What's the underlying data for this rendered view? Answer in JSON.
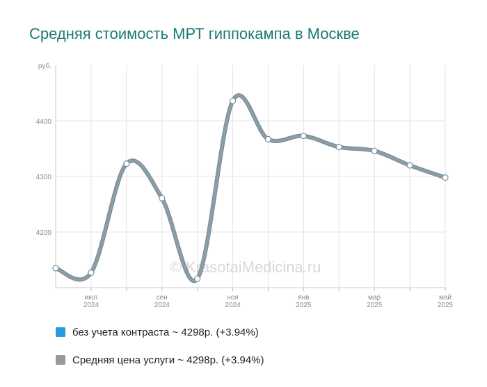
{
  "chart_data": {
    "type": "line",
    "title": "Средняя стоимость МРТ гиппокампа в Москве",
    "ylabel": "руб.",
    "ylim": [
      4100,
      4500
    ],
    "yticks": [
      4200,
      4300,
      4400
    ],
    "xticks": [
      {
        "month": "июл",
        "year": "2024"
      },
      {
        "month": "сен",
        "year": "2024"
      },
      {
        "month": "ноя",
        "year": "2024"
      },
      {
        "month": "янв",
        "year": "2025"
      },
      {
        "month": "мар",
        "year": "2025"
      },
      {
        "month": "май",
        "year": "2025"
      }
    ],
    "x": [
      "2024-06",
      "2024-07",
      "2024-08",
      "2024-09",
      "2024-10",
      "2024-11",
      "2024-12",
      "2025-01",
      "2025-02",
      "2025-03",
      "2025-04",
      "2025-05"
    ],
    "series": [
      {
        "name": "без учета контраста ~ 4298р. (+3.94%)",
        "color": "#2a9bd8",
        "values": [
          4135,
          4127,
          4323,
          4261,
          4116,
          4436,
          4367,
          4373,
          4353,
          4346,
          4320,
          4298
        ]
      },
      {
        "name": "Средняя цена услуги ~ 4298р. (+3.94%)",
        "color": "#999999",
        "values": [
          4135,
          4127,
          4323,
          4261,
          4116,
          4436,
          4367,
          4373,
          4353,
          4346,
          4320,
          4298
        ]
      }
    ],
    "line_color": "#8c9ea8",
    "grid": true,
    "legend_position": "bottom"
  },
  "watermark": "© KrasotaiMedicina.ru"
}
